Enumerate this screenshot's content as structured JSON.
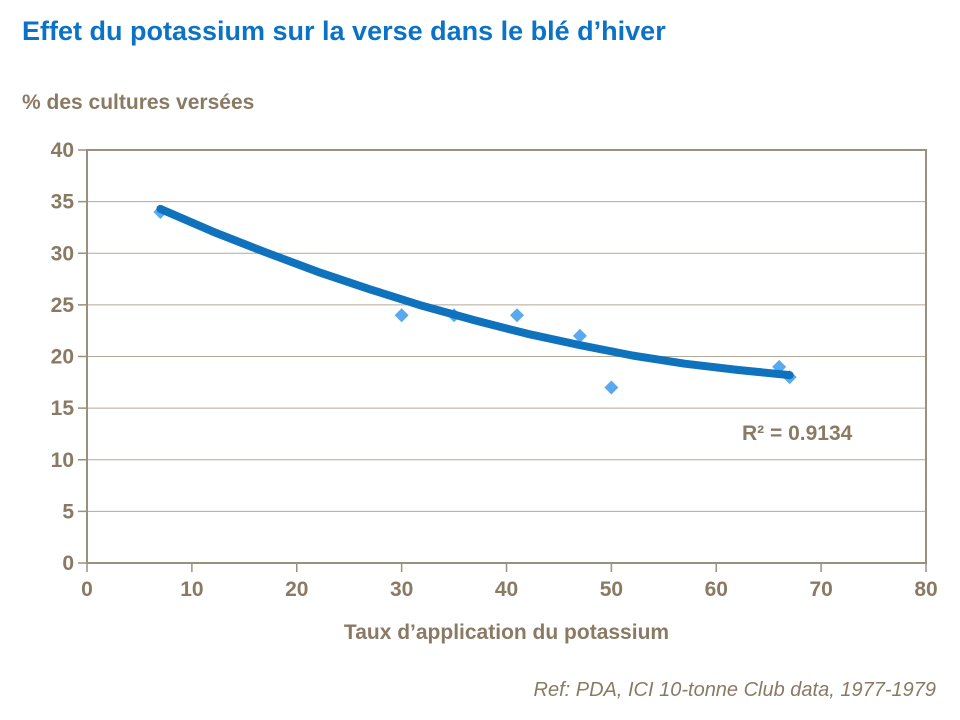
{
  "page": {
    "title": "Effet du potassium sur la verse dans le blé d’hiver",
    "footer_ref": "Ref: PDA, ICI 10-tonne Club data, 1977-1979"
  },
  "chart_data": {
    "type": "scatter",
    "title": "Effet du potassium sur la verse dans le blé d’hiver",
    "ylabel": "% des cultures versées",
    "xlabel": "Taux d’application du potassium",
    "annotation": "R² = 0.9134",
    "r_squared": 0.9134,
    "xlim": [
      0,
      80
    ],
    "ylim": [
      0,
      40
    ],
    "x_ticks": [
      0,
      10,
      20,
      30,
      40,
      50,
      60,
      70,
      80
    ],
    "y_ticks": [
      0,
      5,
      10,
      15,
      20,
      25,
      30,
      35,
      40
    ],
    "grid": "horizontal",
    "legend": "none",
    "points": [
      [
        7,
        34
      ],
      [
        30,
        24
      ],
      [
        35,
        24
      ],
      [
        41,
        24
      ],
      [
        47,
        22
      ],
      [
        50,
        17
      ],
      [
        66,
        19
      ],
      [
        67,
        18
      ]
    ],
    "trend_points": [
      [
        7,
        34.3
      ],
      [
        12,
        32.1
      ],
      [
        17,
        30.1
      ],
      [
        22,
        28.2
      ],
      [
        27,
        26.5
      ],
      [
        32,
        24.9
      ],
      [
        37,
        23.5
      ],
      [
        42,
        22.2
      ],
      [
        47,
        21.1
      ],
      [
        52,
        20.1
      ],
      [
        57,
        19.3
      ],
      [
        62,
        18.7
      ],
      [
        67,
        18.2
      ]
    ],
    "colors": {
      "title": "#0b72c6",
      "text": "#8a7a64",
      "marker": "#58a9ed",
      "trend": "#0f72bd",
      "grid": "#b2a998",
      "axis": "#9a907e"
    }
  }
}
